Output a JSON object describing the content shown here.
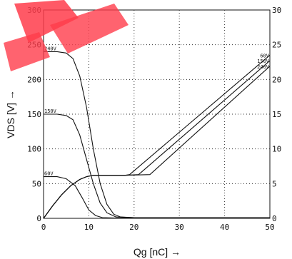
{
  "chart_data": {
    "type": "line",
    "xlabel": "Qg [nC] →",
    "ylabel_left": "VDS [V] →",
    "xlim": [
      0,
      50
    ],
    "ylim_left": [
      0,
      300
    ],
    "ylim_right": [
      0,
      30
    ],
    "grid": true,
    "x_ticks": [
      "0",
      "10",
      "20",
      "30",
      "40",
      "50"
    ],
    "y_ticks_left": [
      "0",
      "50",
      "100",
      "150",
      "200",
      "250",
      "300"
    ],
    "y_ticks_right": [
      "0",
      "5",
      "10",
      "15",
      "20",
      "25",
      "30"
    ],
    "series": [
      {
        "name": "240V",
        "axis": "left",
        "x": [
          0,
          3,
          5,
          6.5,
          8,
          9.5,
          11,
          12.5,
          14,
          15.5,
          17,
          20,
          50
        ],
        "y": [
          240,
          240,
          238,
          230,
          205,
          160,
          100,
          50,
          20,
          6,
          2,
          1,
          1
        ]
      },
      {
        "name": "150V",
        "axis": "left",
        "x": [
          0,
          3,
          5,
          6.5,
          8,
          9.5,
          11,
          12.5,
          14,
          16,
          20,
          50
        ],
        "y": [
          150,
          150,
          148,
          142,
          120,
          85,
          50,
          22,
          8,
          2,
          1,
          1
        ]
      },
      {
        "name": "60V",
        "axis": "left",
        "x": [
          0,
          3,
          5,
          7,
          8.5,
          10,
          11.5,
          13,
          16,
          50
        ],
        "y": [
          60,
          60,
          57,
          47,
          30,
          12,
          4,
          1,
          0.5,
          0.5
        ]
      },
      {
        "name": "60V",
        "axis": "right",
        "x": [
          0,
          2,
          4,
          6,
          8,
          9.5,
          11,
          18,
          19,
          50
        ],
        "y": [
          0,
          1.8,
          3.4,
          4.7,
          5.6,
          6.0,
          6.2,
          6.2,
          6.3,
          23.5
        ]
      },
      {
        "name": "150V",
        "axis": "right",
        "x": [
          0,
          2,
          4,
          6,
          8,
          9.5,
          11,
          18,
          21,
          50
        ],
        "y": [
          0,
          1.8,
          3.4,
          4.7,
          5.6,
          6.0,
          6.2,
          6.2,
          6.3,
          22.7
        ]
      },
      {
        "name": "240V",
        "axis": "right",
        "x": [
          0,
          2,
          4,
          6,
          8,
          9.5,
          11,
          18,
          23.5,
          50
        ],
        "y": [
          0,
          1.8,
          3.4,
          4.7,
          5.6,
          6.0,
          6.2,
          6.2,
          6.3,
          21.9
        ]
      }
    ]
  }
}
